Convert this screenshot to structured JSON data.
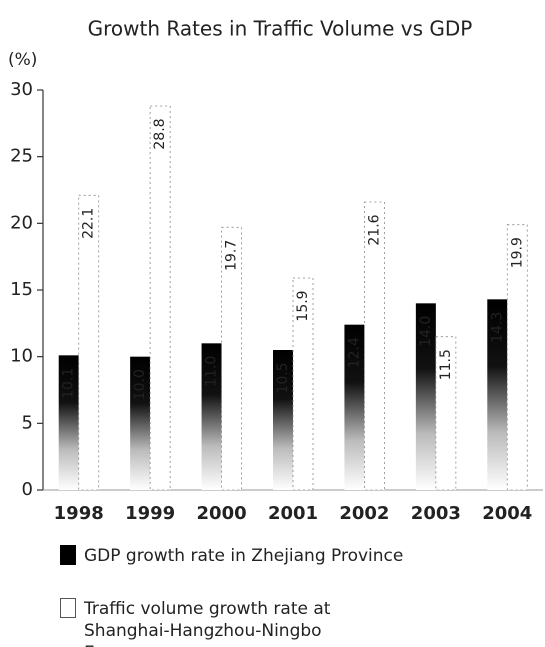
{
  "chart_data": {
    "type": "bar",
    "title": "Growth Rates in Traffic Volume vs GDP",
    "y_label": "(%)",
    "categories": [
      "1998",
      "1999",
      "2000",
      "2001",
      "2002",
      "2003",
      "2004"
    ],
    "series": [
      {
        "name": "GDP growth rate in Zhejiang Province",
        "color": "#000000",
        "values": [
          10.1,
          10.0,
          11.0,
          10.5,
          12.4,
          14.0,
          14.3
        ],
        "value_labels": [
          "10.1",
          "10.0",
          "11.0",
          "10.5",
          "12.4",
          "14.0",
          "14.3"
        ]
      },
      {
        "name": "Traffic volume growth rate at Shanghai-Hangzhou-Ningbo Expressway",
        "color": "#ffffff",
        "values": [
          22.1,
          28.8,
          19.7,
          15.9,
          21.6,
          11.5,
          19.9
        ],
        "value_labels": [
          "22.1",
          "28.8",
          "19.7",
          "15.9",
          "21.6",
          "11.5",
          "19.9"
        ]
      }
    ],
    "ylim": [
      0,
      30
    ],
    "yticks": [
      0,
      5,
      10,
      15,
      20,
      25,
      30
    ]
  }
}
